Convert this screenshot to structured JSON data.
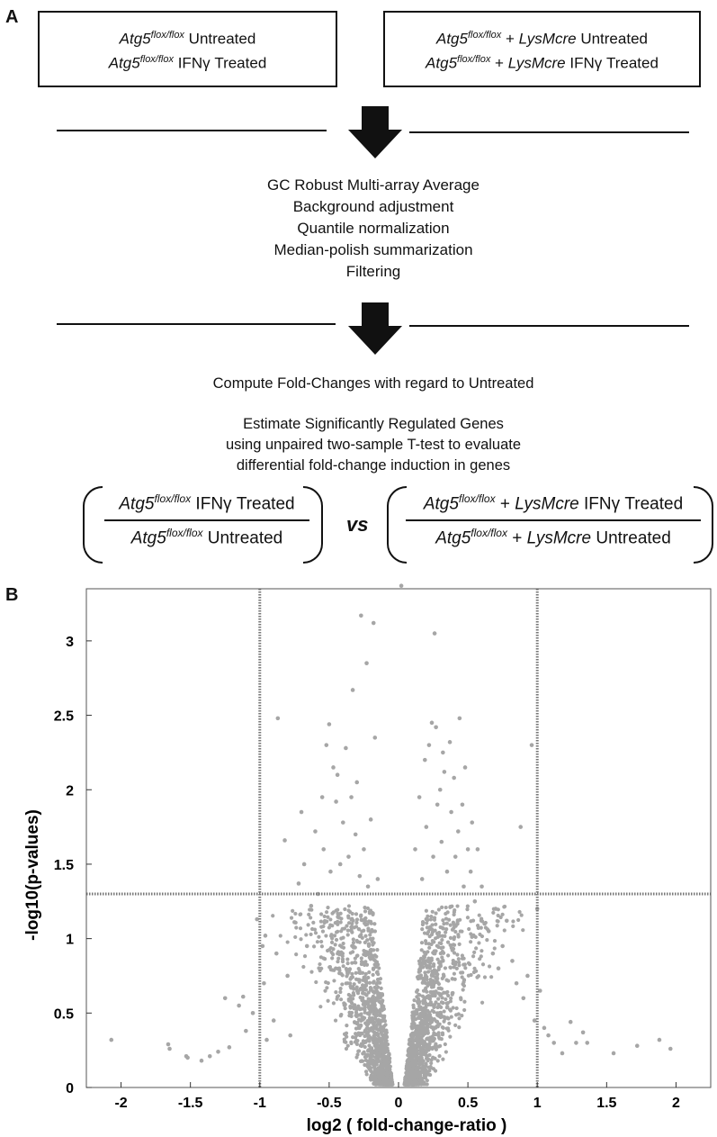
{
  "panel_a": {
    "letter": "A",
    "box_left": {
      "line1": {
        "gene": "Atg5",
        "sup": "flox/flox",
        "text": " Untreated"
      },
      "line2": {
        "gene": "Atg5",
        "sup": "flox/flox",
        "text": " IFNγ Treated"
      }
    },
    "box_right": {
      "line1": {
        "gene": "Atg5",
        "sup": "flox/flox",
        "plus": " + ",
        "cre": "LysMcre",
        "text": " Untreated"
      },
      "line2": {
        "gene": "Atg5",
        "sup": "flox/flox",
        "plus": " + ",
        "cre": "LysMcre",
        "text": " IFNγ Treated"
      }
    },
    "steps": [
      "GC Robust Multi-array Average",
      "Background adjustment",
      "Quantile normalization",
      "Median-polish summarization",
      "Filtering"
    ],
    "fold_change_text": "Compute Fold-Changes with regard to Untreated",
    "estimate_lines": [
      "Estimate Significantly Regulated Genes",
      "using unpaired two-sample T-test to evaluate",
      "differential fold-change induction in genes"
    ],
    "fraction_left": {
      "num": {
        "gene": "Atg5",
        "sup": "flox/flox",
        "text": " IFNγ Treated"
      },
      "den": {
        "gene": "Atg5",
        "sup": "flox/flox",
        "text": " Untreated"
      }
    },
    "vs": "vs",
    "fraction_right": {
      "num": {
        "gene": "Atg5",
        "sup": "flox/flox",
        "plus": " + ",
        "cre": "LysMcre",
        "text": " IFNγ Treated"
      },
      "den": {
        "gene": "Atg5",
        "sup": "flox/flox",
        "plus": " + ",
        "cre": "LysMcre",
        "text": " Untreated"
      }
    }
  },
  "panel_b": {
    "letter": "B"
  },
  "chart_data": {
    "type": "scatter",
    "xlabel": "log2 ( fold-change-ratio )",
    "ylabel": "-log10(p-values)",
    "xlim": [
      -2.25,
      2.25
    ],
    "ylim": [
      0,
      3.35
    ],
    "xticks": [
      -2,
      -1.5,
      -1,
      -0.5,
      0,
      0.5,
      1,
      1.5,
      2
    ],
    "xtick_labels": [
      "-2",
      "-1.5",
      "-1",
      "-0.5",
      "0",
      "0.5",
      "1",
      "1.5",
      "2"
    ],
    "yticks": [
      0,
      0.5,
      1,
      1.5,
      2,
      2.5,
      3
    ],
    "ytick_labels": [
      "0",
      "0.5",
      "1",
      "1.5",
      "2",
      "2.5",
      "3"
    ],
    "threshold_lines": {
      "x": [
        -1,
        1
      ],
      "y": 1.3
    },
    "point_color": "#a6a6a6",
    "grid": false,
    "points": [
      [
        -2.07,
        0.32
      ],
      [
        -1.66,
        0.29
      ],
      [
        -1.65,
        0.26
      ],
      [
        -1.53,
        0.21
      ],
      [
        -1.52,
        0.2
      ],
      [
        -1.42,
        0.18
      ],
      [
        -1.36,
        0.21
      ],
      [
        -1.3,
        0.24
      ],
      [
        -1.25,
        0.6
      ],
      [
        -1.22,
        0.27
      ],
      [
        -1.15,
        0.55
      ],
      [
        -1.12,
        0.61
      ],
      [
        -1.1,
        0.38
      ],
      [
        -1.05,
        0.5
      ],
      [
        -1.02,
        1.13
      ],
      [
        -0.98,
        0.95
      ],
      [
        -0.97,
        0.7
      ],
      [
        -0.96,
        1.02
      ],
      [
        -0.95,
        0.32
      ],
      [
        -0.9,
        0.45
      ],
      [
        -0.88,
        0.9
      ],
      [
        -0.87,
        2.48
      ],
      [
        -0.82,
        1.66
      ],
      [
        -0.8,
        0.75
      ],
      [
        -0.78,
        0.35
      ],
      [
        -0.75,
        1.11
      ],
      [
        -0.72,
        1.37
      ],
      [
        -0.7,
        1.85
      ],
      [
        -0.68,
        1.5
      ],
      [
        -0.66,
        0.95
      ],
      [
        -0.63,
        1.22
      ],
      [
        -0.6,
        1.72
      ],
      [
        -0.58,
        1.3
      ],
      [
        -0.55,
        1.95
      ],
      [
        -0.54,
        1.6
      ],
      [
        -0.52,
        2.3
      ],
      [
        -0.5,
        2.44
      ],
      [
        -0.49,
        1.45
      ],
      [
        -0.47,
        2.15
      ],
      [
        -0.45,
        1.92
      ],
      [
        -0.44,
        2.1
      ],
      [
        -0.42,
        1.5
      ],
      [
        -0.4,
        1.78
      ],
      [
        -0.38,
        2.28
      ],
      [
        -0.36,
        1.55
      ],
      [
        -0.34,
        1.95
      ],
      [
        -0.33,
        2.67
      ],
      [
        -0.31,
        1.7
      ],
      [
        -0.3,
        2.05
      ],
      [
        -0.28,
        1.42
      ],
      [
        -0.27,
        3.17
      ],
      [
        -0.25,
        1.6
      ],
      [
        -0.23,
        2.85
      ],
      [
        -0.22,
        1.35
      ],
      [
        -0.2,
        1.8
      ],
      [
        -0.18,
        3.12
      ],
      [
        -0.17,
        2.35
      ],
      [
        -0.15,
        1.4
      ],
      [
        0.02,
        3.37
      ],
      [
        0.12,
        1.6
      ],
      [
        0.15,
        1.95
      ],
      [
        0.17,
        1.4
      ],
      [
        0.19,
        2.2
      ],
      [
        0.2,
        1.75
      ],
      [
        0.22,
        2.3
      ],
      [
        0.24,
        2.45
      ],
      [
        0.25,
        1.55
      ],
      [
        0.26,
        3.05
      ],
      [
        0.27,
        2.42
      ],
      [
        0.28,
        1.9
      ],
      [
        0.3,
        2.0
      ],
      [
        0.31,
        1.65
      ],
      [
        0.32,
        2.25
      ],
      [
        0.33,
        2.12
      ],
      [
        0.35,
        1.45
      ],
      [
        0.37,
        2.32
      ],
      [
        0.38,
        1.85
      ],
      [
        0.4,
        2.08
      ],
      [
        0.41,
        1.55
      ],
      [
        0.43,
        1.72
      ],
      [
        0.44,
        2.48
      ],
      [
        0.46,
        1.9
      ],
      [
        0.47,
        1.35
      ],
      [
        0.48,
        2.15
      ],
      [
        0.5,
        1.6
      ],
      [
        0.52,
        1.45
      ],
      [
        0.53,
        1.78
      ],
      [
        0.55,
        1.25
      ],
      [
        0.57,
        1.6
      ],
      [
        0.6,
        1.35
      ],
      [
        0.62,
        1.1
      ],
      [
        0.65,
        1.05
      ],
      [
        0.68,
        0.9
      ],
      [
        0.7,
        1.2
      ],
      [
        0.72,
        0.8
      ],
      [
        0.75,
        0.95
      ],
      [
        0.78,
        1.12
      ],
      [
        0.82,
        0.85
      ],
      [
        0.85,
        0.7
      ],
      [
        0.88,
        1.75
      ],
      [
        0.9,
        0.6
      ],
      [
        0.93,
        0.75
      ],
      [
        0.96,
        2.3
      ],
      [
        0.98,
        0.45
      ],
      [
        1.0,
        1.2
      ],
      [
        1.02,
        0.65
      ],
      [
        1.05,
        0.4
      ],
      [
        1.08,
        0.35
      ],
      [
        1.12,
        0.3
      ],
      [
        1.18,
        0.23
      ],
      [
        1.24,
        0.44
      ],
      [
        1.28,
        0.3
      ],
      [
        1.33,
        0.37
      ],
      [
        1.36,
        0.3
      ],
      [
        1.55,
        0.23
      ],
      [
        1.72,
        0.28
      ],
      [
        1.88,
        0.32
      ],
      [
        1.96,
        0.26
      ]
    ]
  }
}
